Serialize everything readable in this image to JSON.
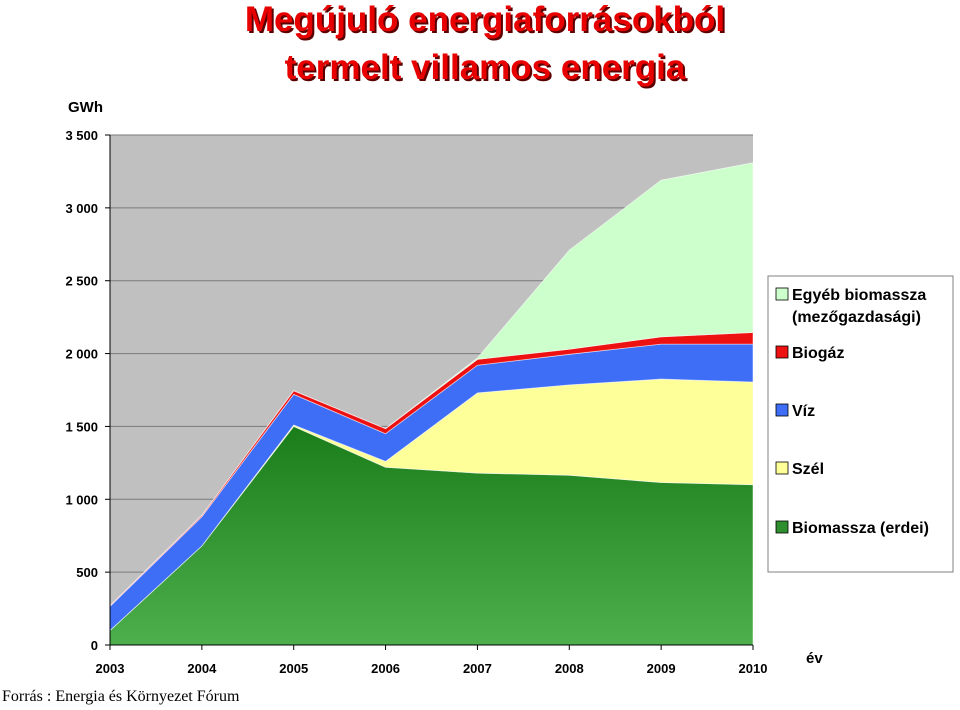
{
  "title": {
    "line1": "Megújuló energiaforrásokból",
    "line2": "termelt villamos energia"
  },
  "source": "Forrás : Energia és Környezet Fórum",
  "colors": {
    "Egyéb biomassza": "#ccffcc",
    "Biogáz": "#ee1111",
    "Víz": "#3d6ef5",
    "Szél": "#ffff99",
    "Biomassza (erdei)": "#2f8f2f",
    "plot_bg": "#c0c0c0"
  },
  "chart_data": {
    "type": "area",
    "stacked": true,
    "ylabel": "GWh",
    "xlabel": "év",
    "x": [
      2003,
      2004,
      2005,
      2006,
      2007,
      2008,
      2009,
      2010
    ],
    "x_tick_labels": [
      "2003",
      "2004",
      "2005",
      "2006",
      "2007",
      "2008",
      "2009",
      "2010"
    ],
    "ylim": [
      0,
      3500
    ],
    "y_ticks": [
      0,
      500,
      1000,
      1500,
      2000,
      2500,
      3000,
      3500
    ],
    "y_tick_labels": [
      "0",
      "500",
      "1 000",
      "1 500",
      "2 000",
      "2 500",
      "3 000",
      "3 500"
    ],
    "grid": true,
    "legend_position": "right",
    "series": [
      {
        "name": "Biomassza (erdei)",
        "values": [
          100,
          680,
          1500,
          1220,
          1180,
          1165,
          1115,
          1100
        ]
      },
      {
        "name": "Szél",
        "values": [
          0,
          0,
          10,
          40,
          550,
          620,
          710,
          705
        ]
      },
      {
        "name": "Víz",
        "values": [
          165,
          200,
          210,
          190,
          190,
          210,
          240,
          260
        ]
      },
      {
        "name": "Biogáz",
        "values": [
          5,
          10,
          25,
          35,
          40,
          35,
          50,
          80
        ]
      },
      {
        "name": "Egyéb biomassza (mezőgazdasági)",
        "values": [
          0,
          0,
          0,
          0,
          10,
          680,
          1075,
          1165
        ]
      }
    ],
    "legend": [
      {
        "series": "Egyéb biomassza (mezőgazdasági)",
        "lines": [
          "Egyéb biomassza",
          "(mezőgazdasági)"
        ],
        "color": "#ccffcc"
      },
      {
        "series": "Biogáz",
        "lines": [
          "Biogáz"
        ],
        "color": "#ee1111"
      },
      {
        "series": "Víz",
        "lines": [
          "Víz"
        ],
        "color": "#3d6ef5"
      },
      {
        "series": "Szél",
        "lines": [
          "Szél"
        ],
        "color": "#ffff99"
      },
      {
        "series": "Biomassza (erdei)",
        "lines": [
          "Biomassza (erdei)"
        ],
        "color": "#2f8f2f"
      }
    ]
  }
}
